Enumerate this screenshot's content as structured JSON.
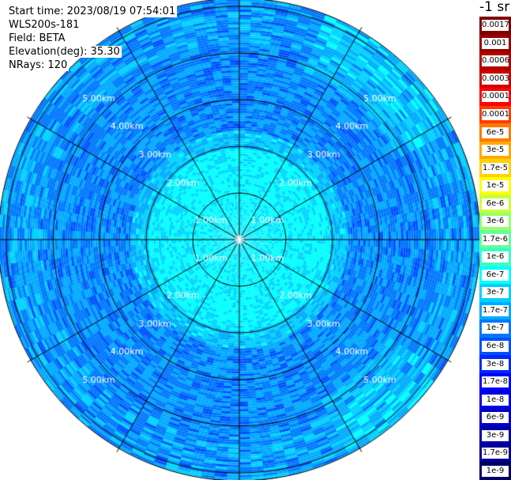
{
  "info": {
    "start_time": "Start time: 2023/08/19 07:54:01",
    "instrument": "WLS200s-181",
    "field": "Field: BETA",
    "elevation": "Elevation(deg): 35.30",
    "nrays": "NRays: 120"
  },
  "colorbar": {
    "title": "-1 sr",
    "labels": [
      "0.0017",
      "0.001",
      "0.0006",
      "0.0003",
      "0.00017",
      "0.0001",
      "6e-5",
      "3e-5",
      "1.7e-5",
      "1e-5",
      "6e-6",
      "3e-6",
      "1.7e-6",
      "1e-6",
      "6e-7",
      "3e-7",
      "1.7e-7",
      "1e-7",
      "6e-8",
      "3e-8",
      "1.7e-8",
      "1e-8",
      "6e-9",
      "3e-9",
      "1.7e-9",
      "1e-9"
    ],
    "colors": [
      "#800000",
      "#9a0000",
      "#b40000",
      "#d00000",
      "#ff0000",
      "#ff3c00",
      "#ff7800",
      "#ffaa00",
      "#ffd200",
      "#ffff00",
      "#c8ff37",
      "#96ff69",
      "#64ff96",
      "#37ffc8",
      "#00ffff",
      "#00d2ff",
      "#00aaff",
      "#0078ff",
      "#0050ff",
      "#0028ff",
      "#0000ff",
      "#0000e6",
      "#0000c8",
      "#0000aa",
      "#000096",
      "#000064"
    ]
  },
  "range_rings": {
    "labels": [
      "1.00km",
      "2.00km",
      "3.00km",
      "4.00km",
      "5.00km"
    ]
  }
}
